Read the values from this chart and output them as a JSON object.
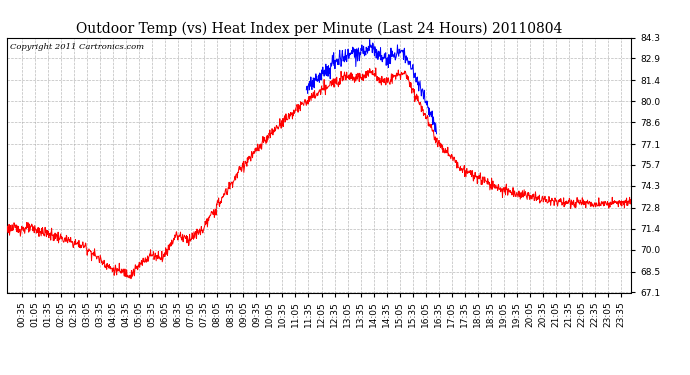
{
  "title": "Outdoor Temp (vs) Heat Index per Minute (Last 24 Hours) 20110804",
  "copyright": "Copyright 2011 Cartronics.com",
  "ylabel_ticks": [
    67.1,
    68.5,
    70.0,
    71.4,
    72.8,
    74.3,
    75.7,
    77.1,
    78.6,
    80.0,
    81.4,
    82.9,
    84.3
  ],
  "ymin": 67.1,
  "ymax": 84.3,
  "red_color": "#FF0000",
  "blue_color": "#0000FF",
  "bg_color": "#FFFFFF",
  "grid_color": "#AAAAAA",
  "title_fontsize": 10,
  "copyright_fontsize": 6,
  "tick_fontsize": 6.5
}
